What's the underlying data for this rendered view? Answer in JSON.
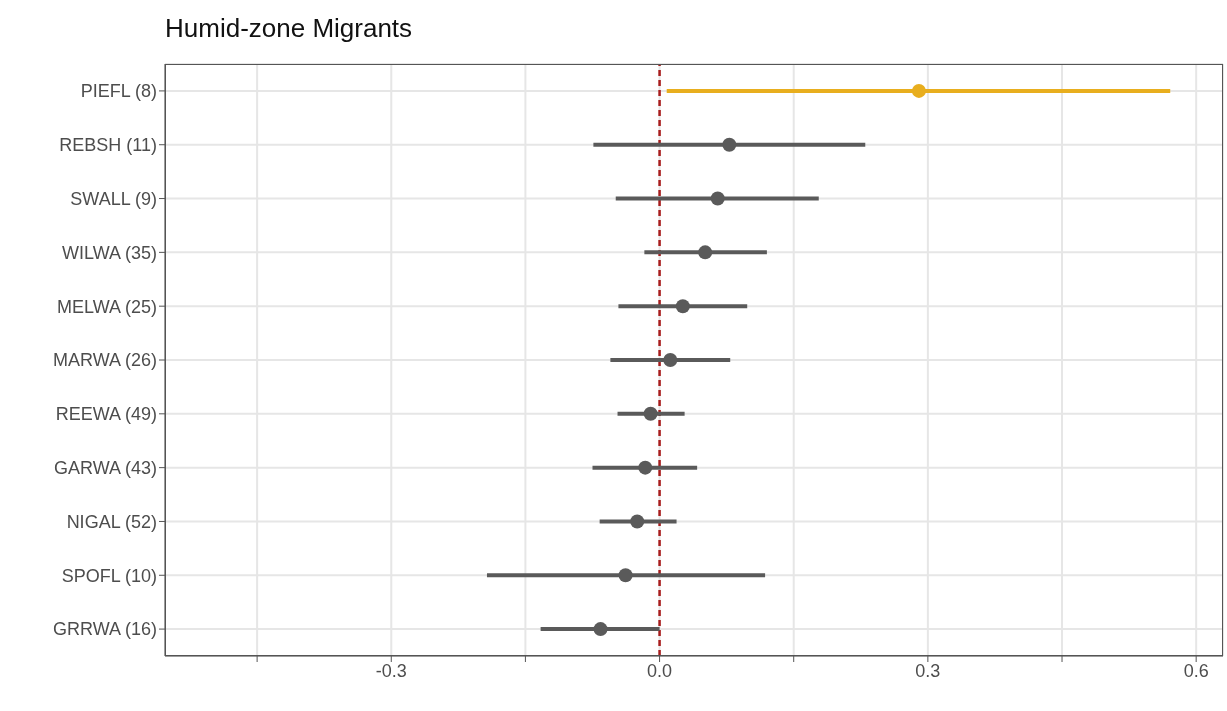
{
  "chart_data": {
    "type": "scatter",
    "orientation": "horizontal",
    "title": "Humid-zone Migrants",
    "categories": [
      "PIEFL (8)",
      "REBSH (11)",
      "SWALL (9)",
      "WILWA (35)",
      "MELWA (25)",
      "MARWA (26)",
      "REEWA (49)",
      "GARWA (43)",
      "NIGAL (52)",
      "SPOFL (10)",
      "GRRWA (16)"
    ],
    "values": [
      0.29,
      0.078,
      0.065,
      0.051,
      0.026,
      0.012,
      -0.01,
      -0.016,
      -0.025,
      -0.038,
      -0.066
    ],
    "errors": [
      [
        0.008,
        0.571
      ],
      [
        -0.074,
        0.23
      ],
      [
        -0.049,
        0.178
      ],
      [
        -0.017,
        0.12
      ],
      [
        -0.046,
        0.098
      ],
      [
        -0.055,
        0.079
      ],
      [
        -0.047,
        0.028
      ],
      [
        -0.075,
        0.042
      ],
      [
        -0.067,
        0.019
      ],
      [
        -0.193,
        0.118
      ],
      [
        -0.133,
        0
      ]
    ],
    "colors": [
      "#e8ae1e",
      "#5a5a5a",
      "#5a5a5a",
      "#5a5a5a",
      "#5a5a5a",
      "#5a5a5a",
      "#5a5a5a",
      "#5a5a5a",
      "#5a5a5a",
      "#5a5a5a",
      "#5a5a5a"
    ],
    "xlim": [
      -0.553,
      0.63
    ],
    "xticks": [
      {
        "value": -0.45,
        "label": null
      },
      -0.3,
      {
        "value": -0.15,
        "label": null
      },
      {
        "value": 0,
        "label": "0.0"
      },
      {
        "value": 0.15,
        "label": null
      },
      0.3,
      {
        "value": 0.45,
        "label": null
      },
      0.6
    ],
    "ref_lines": [
      {
        "axis": "x",
        "value": 0,
        "color": "#a81c1c",
        "line_style": "dashed"
      }
    ],
    "grid": true,
    "marker": "circle"
  }
}
